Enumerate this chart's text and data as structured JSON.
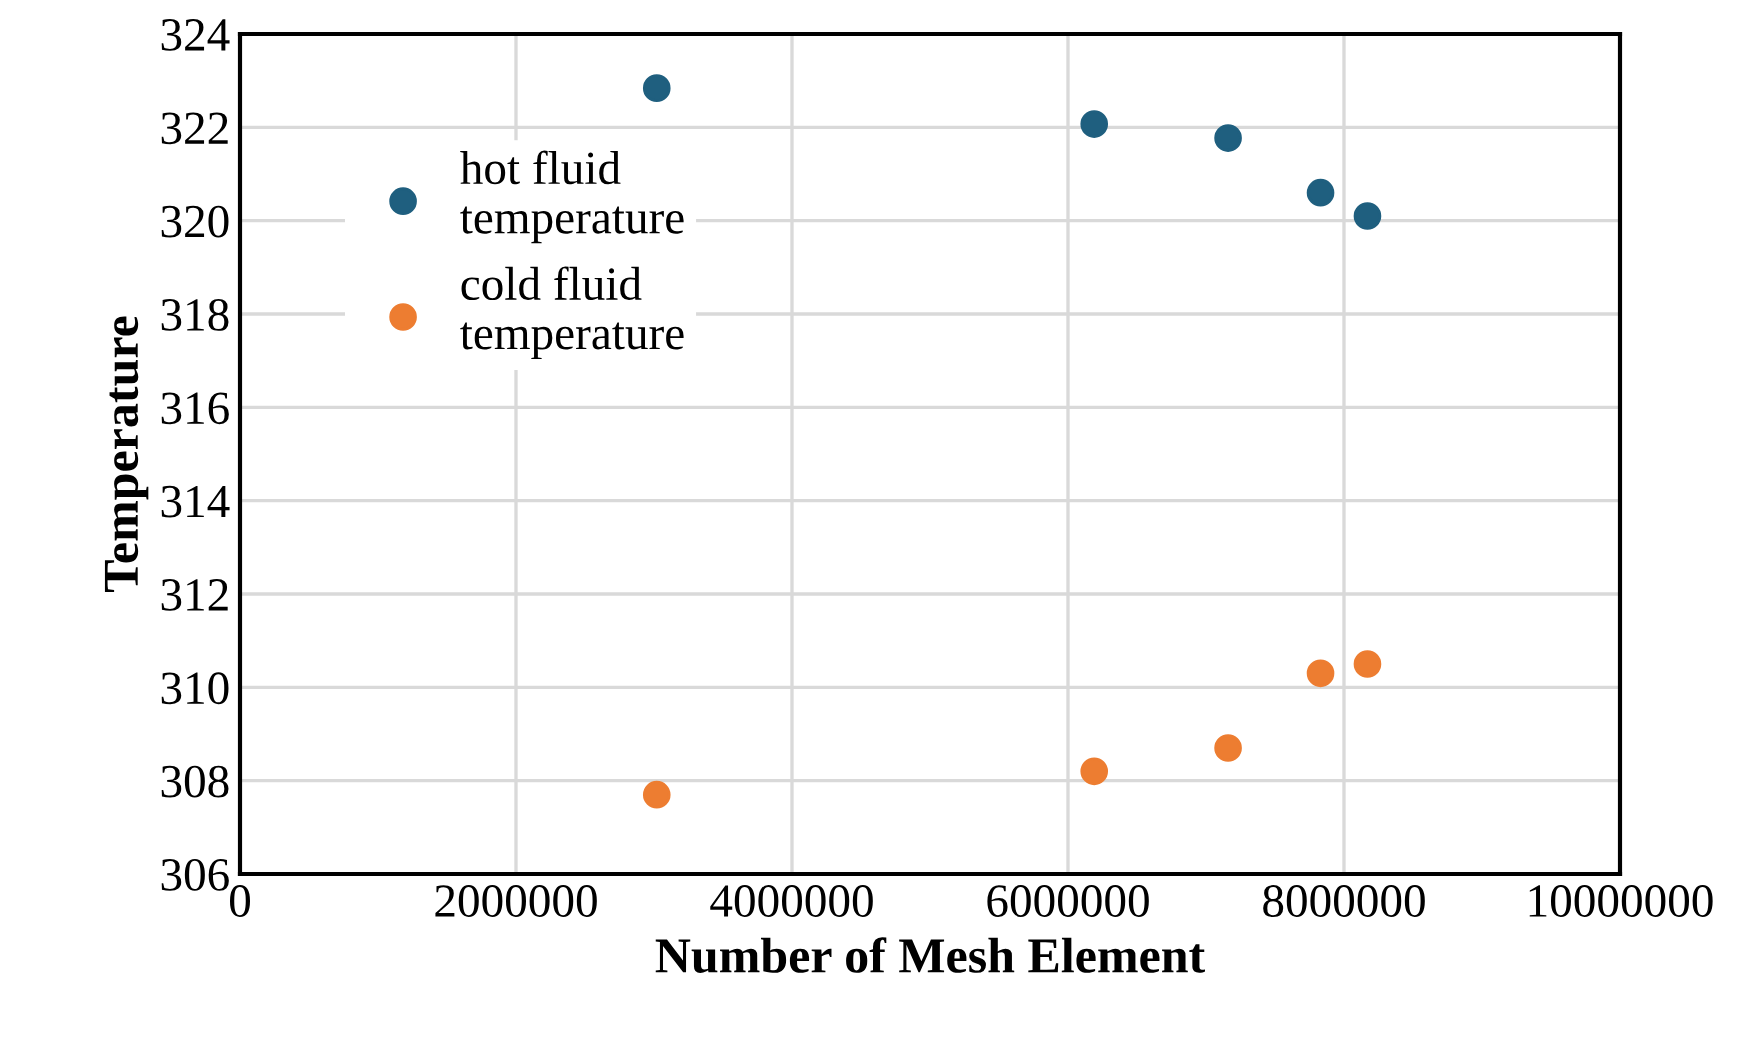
{
  "chart_data": {
    "type": "scatter",
    "xlabel": "Number of Mesh Element",
    "ylabel": "Temperature",
    "x": [
      3020000,
      6190000,
      7160000,
      7830000,
      8170000
    ],
    "series": [
      {
        "name": "hot fluid\ntemperature",
        "color": "#1f5f7f",
        "values": [
          322.84,
          322.07,
          321.77,
          320.6,
          320.1
        ]
      },
      {
        "name": "cold fluid\ntemperature",
        "color": "#ed7d31",
        "values": [
          307.7,
          308.2,
          308.7,
          310.3,
          310.5
        ]
      }
    ],
    "xlim": [
      0,
      10000000
    ],
    "xticks": [
      0,
      2000000,
      4000000,
      6000000,
      8000000,
      10000000
    ],
    "ylim": [
      306,
      324
    ],
    "yticks": [
      306,
      308,
      310,
      312,
      314,
      316,
      318,
      320,
      322,
      324
    ],
    "grid": true,
    "legend": "top left",
    "marker": "circle"
  }
}
